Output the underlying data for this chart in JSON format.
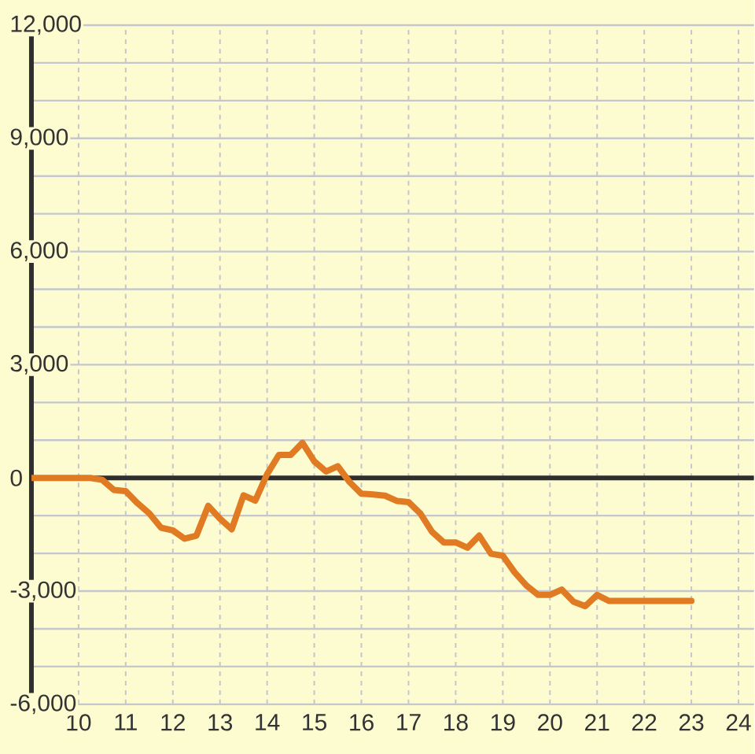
{
  "chart_data": {
    "type": "line",
    "x": [
      9,
      10,
      10.25,
      10.5,
      10.75,
      11,
      11.25,
      11.5,
      11.75,
      12,
      12.25,
      12.5,
      12.75,
      13,
      13.25,
      13.5,
      13.75,
      14,
      14.25,
      14.5,
      14.75,
      15,
      15.25,
      15.5,
      15.75,
      16,
      16.25,
      16.5,
      16.75,
      17,
      17.25,
      17.5,
      17.75,
      18,
      18.25,
      18.5,
      18.75,
      19,
      19.25,
      19.5,
      19.75,
      20,
      20.25,
      20.5,
      20.75,
      21,
      21.25,
      22,
      23
    ],
    "series": [
      {
        "color": "#E07B24",
        "values": [
          0,
          0,
          0,
          -50,
          -320,
          -350,
          -670,
          -940,
          -1320,
          -1390,
          -1610,
          -1530,
          -740,
          -1080,
          -1360,
          -460,
          -600,
          100,
          610,
          610,
          930,
          440,
          170,
          310,
          -110,
          -420,
          -440,
          -470,
          -610,
          -640,
          -940,
          -1430,
          -1710,
          -1710,
          -1850,
          -1530,
          -2010,
          -2060,
          -2500,
          -2850,
          -3100,
          -3100,
          -2960,
          -3280,
          -3400,
          -3100,
          -3260,
          -3260,
          -3260
        ]
      }
    ],
    "xlim": [
      9,
      24.33
    ],
    "ylim": [
      -6000,
      12000
    ],
    "xticks": [
      10,
      11,
      12,
      13,
      14,
      15,
      16,
      17,
      18,
      19,
      20,
      21,
      22,
      23,
      24
    ],
    "yticks": [
      {
        "value": -6000,
        "label": "-6,000"
      },
      {
        "value": -5000,
        "label": null
      },
      {
        "value": -4000,
        "label": null
      },
      {
        "value": -3000,
        "label": "-3,000"
      },
      {
        "value": -2000,
        "label": null
      },
      {
        "value": -1000,
        "label": null
      },
      {
        "value": 0,
        "label": "0"
      },
      {
        "value": 1000,
        "label": null
      },
      {
        "value": 2000,
        "label": null
      },
      {
        "value": 3000,
        "label": "3,000"
      },
      {
        "value": 4000,
        "label": null
      },
      {
        "value": 5000,
        "label": null
      },
      {
        "value": 6000,
        "label": "6,000"
      },
      {
        "value": 7000,
        "label": null
      },
      {
        "value": 8000,
        "label": null
      },
      {
        "value": 9000,
        "label": "9,000"
      },
      {
        "value": 10000,
        "label": null
      },
      {
        "value": 11000,
        "label": null
      },
      {
        "value": 12000,
        "label": "12,000"
      }
    ],
    "grid": true,
    "ref_lines": [
      {
        "axis": "y",
        "value": 0,
        "color": "#2E2E2E"
      }
    ]
  }
}
